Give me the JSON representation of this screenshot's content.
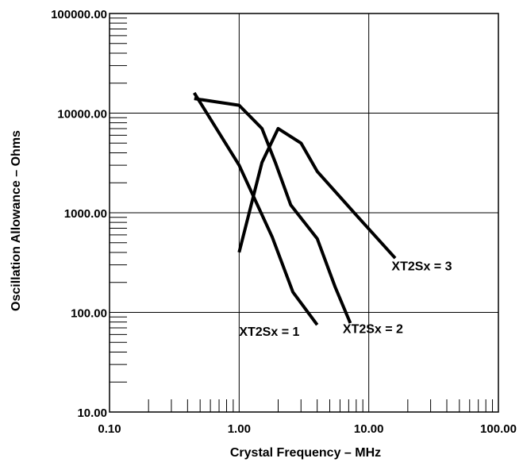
{
  "chart_data": {
    "type": "line",
    "title": "",
    "xlabel": "Crystal Frequency – MHz",
    "ylabel": "Oscillation Allowance – Ohms",
    "x_scale": "log",
    "y_scale": "log",
    "xlim": [
      0.1,
      100
    ],
    "ylim": [
      10,
      100000
    ],
    "grid": true,
    "legend": "none",
    "line_color": "#000000",
    "x_ticks": [
      {
        "value": 0.1,
        "label": "0.10"
      },
      {
        "value": 1,
        "label": "1.00"
      },
      {
        "value": 10,
        "label": "10.00"
      },
      {
        "value": 100,
        "label": "100.00"
      }
    ],
    "y_ticks": [
      {
        "value": 10,
        "label": "10.00"
      },
      {
        "value": 100,
        "label": "100.00"
      },
      {
        "value": 1000,
        "label": "1000.00"
      },
      {
        "value": 10000,
        "label": "10000.00"
      },
      {
        "value": 100000,
        "label": "100000.00"
      }
    ],
    "series": [
      {
        "name": "XT2Sx = 1",
        "x": [
          0.45,
          1.0,
          1.8,
          2.6,
          4.0
        ],
        "y": [
          16000,
          3000,
          570,
          160,
          75
        ]
      },
      {
        "name": "XT2Sx = 2",
        "x": [
          0.45,
          1.0,
          1.5,
          1.9,
          2.5,
          4.0,
          5.5,
          7.2
        ],
        "y": [
          14000,
          12000,
          7000,
          3200,
          1200,
          550,
          180,
          78
        ]
      },
      {
        "name": "XT2Sx = 3",
        "x": [
          1.0,
          1.5,
          2.0,
          3.0,
          4.0,
          8.0,
          16.0
        ],
        "y": [
          400,
          3200,
          7000,
          5000,
          2600,
          950,
          350
        ]
      }
    ],
    "annotations": [
      {
        "text": "XT2Sx = 1",
        "x": 1.0,
        "y": 58,
        "anchor": "start"
      },
      {
        "text": "XT2Sx = 2",
        "x": 6.3,
        "y": 62,
        "anchor": "start"
      },
      {
        "text": "XT2Sx = 3",
        "x": 15.0,
        "y": 265,
        "anchor": "start"
      }
    ]
  }
}
